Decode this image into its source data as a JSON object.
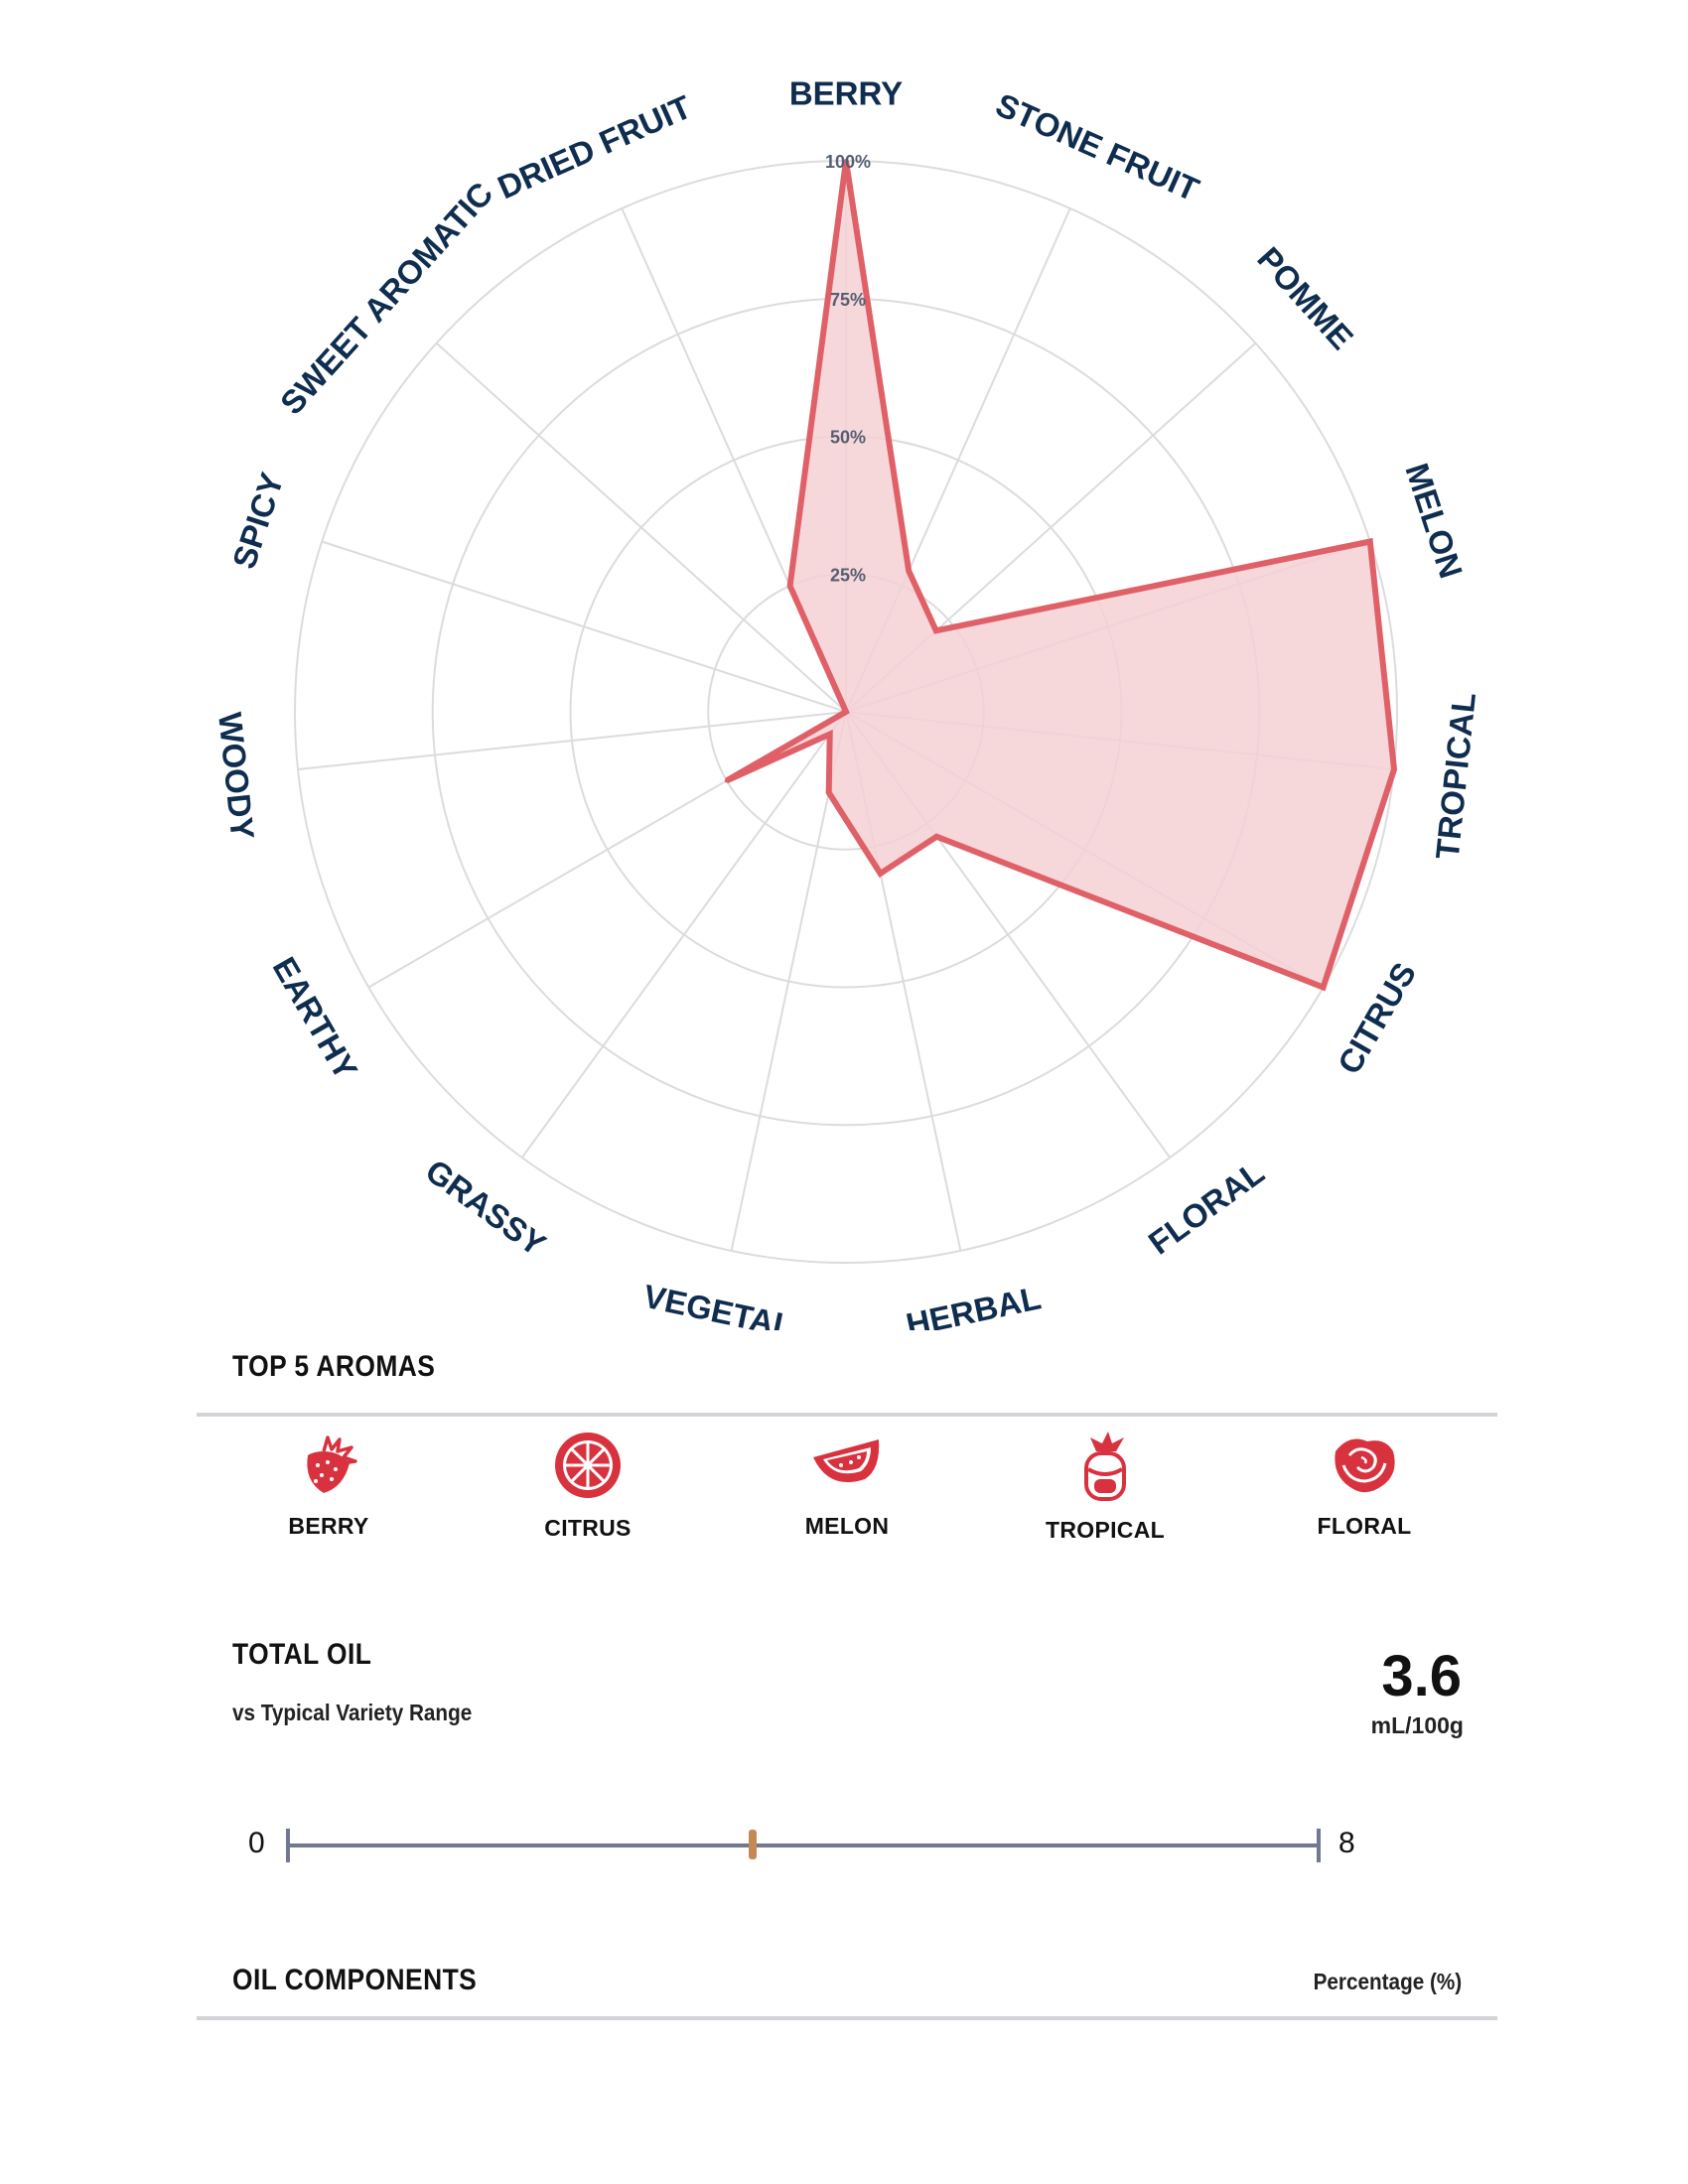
{
  "chart_data": {
    "type": "radar",
    "axes": [
      "BERRY",
      "STONE FRUIT",
      "POMME",
      "MELON",
      "TROPICAL",
      "CITRUS",
      "FLORAL",
      "HERBAL",
      "VEGETAL",
      "GRASSY",
      "EARTHY",
      "WOODY",
      "SPICY",
      "SWEET AROMATIC",
      "DRIED FRUIT"
    ],
    "values": [
      100,
      28,
      22,
      100,
      100,
      100,
      28,
      30,
      15,
      5,
      25,
      0,
      0,
      0,
      25
    ],
    "rlim": [
      0,
      100
    ],
    "ticks": [
      "25%",
      "50%",
      "75%",
      "100%"
    ],
    "tick_values": [
      25,
      50,
      75,
      100
    ],
    "series_color": "#e06068",
    "fill_color": "#f5d0d3"
  },
  "top_aromas": {
    "title": "TOP 5 AROMAS",
    "items": [
      {
        "label": "BERRY",
        "icon": "strawberry-icon"
      },
      {
        "label": "CITRUS",
        "icon": "citrus-slice-icon"
      },
      {
        "label": "MELON",
        "icon": "melon-slice-icon"
      },
      {
        "label": "TROPICAL",
        "icon": "pineapple-icon"
      },
      {
        "label": "FLORAL",
        "icon": "rose-icon"
      }
    ],
    "icon_color": "#d8323f"
  },
  "total_oil": {
    "title": "TOTAL OIL",
    "subtitle": "vs Typical Variety Range",
    "value": "3.6",
    "unit": "mL/100g",
    "range_min": "0",
    "range_max": "8",
    "value_numeric": 3.6,
    "max_numeric": 8
  },
  "oil_components": {
    "title": "OIL COMPONENTS",
    "column_header": "Percentage (%)"
  }
}
